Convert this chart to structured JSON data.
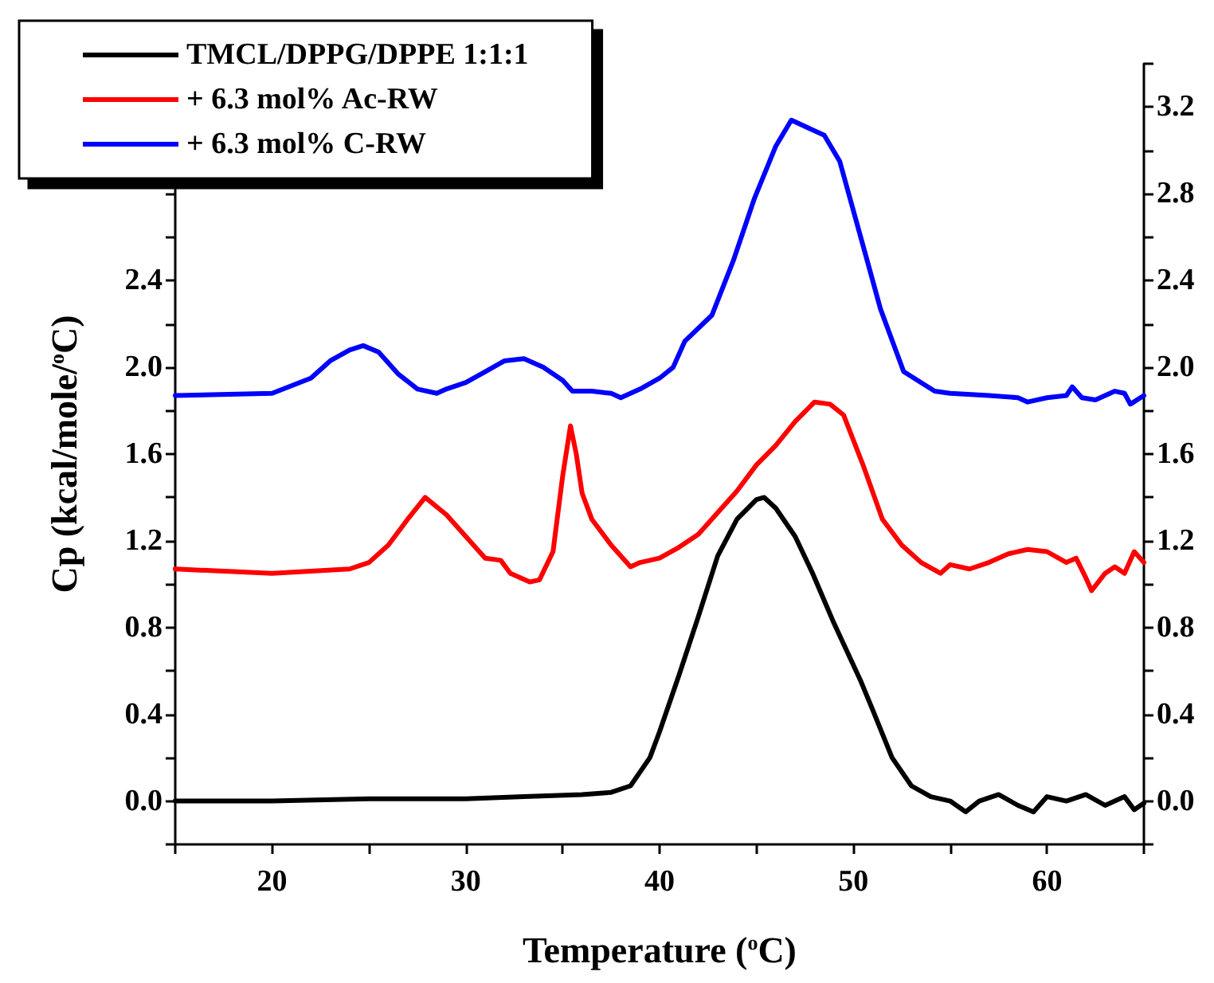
{
  "chart_data": {
    "type": "line",
    "xlabel": "Temperature ($^{o}$C)",
    "ylabel": "Cp (kcal/mole/$^{o}$C)",
    "xlim": [
      15,
      65
    ],
    "xticks": [
      {
        "value": 15,
        "label": null
      },
      20,
      {
        "value": 25,
        "label": null
      },
      30,
      {
        "value": 35,
        "label": null
      },
      40,
      {
        "value": 45,
        "label": null
      },
      50,
      {
        "value": 55,
        "label": null
      },
      60,
      {
        "value": 65,
        "label": null
      }
    ],
    "ylim": [
      -0.2,
      3.4
    ],
    "yticks": [
      {
        "value": -0.2,
        "label": null
      },
      {
        "value": 0,
        "label": "0.0"
      },
      {
        "value": 0.2,
        "label": null
      },
      0.4,
      {
        "value": 0.6,
        "label": null
      },
      0.8,
      {
        "value": 1.0,
        "label": null
      },
      1.2,
      {
        "value": 1.4,
        "label": null
      },
      1.6,
      {
        "value": 1.8,
        "label": null
      },
      {
        "value": 2.0,
        "label": "2.0"
      },
      {
        "value": 2.2,
        "label": null
      },
      2.4,
      {
        "value": 2.6,
        "label": null
      },
      {
        "value": 2.8,
        "label": null
      },
      {
        "value": 3.0,
        "label": null
      },
      {
        "value": 3.2,
        "label": null
      },
      {
        "value": 3.4,
        "label": null
      }
    ],
    "y2lim": [
      -0.2,
      3.4
    ],
    "y2ticks": [
      {
        "value": -0.2,
        "label": null
      },
      {
        "value": 0,
        "label": "0.0"
      },
      {
        "value": 0.2,
        "label": null
      },
      0.4,
      {
        "value": 0.6,
        "label": null
      },
      0.8,
      {
        "value": 1.0,
        "label": null
      },
      1.2,
      {
        "value": 1.4,
        "label": null
      },
      1.6,
      {
        "value": 1.8,
        "label": null
      },
      {
        "value": 2.0,
        "label": "2.0"
      },
      {
        "value": 2.2,
        "label": null
      },
      2.4,
      {
        "value": 2.6,
        "label": null
      },
      2.8,
      {
        "value": 3.0,
        "label": null
      },
      3.2,
      {
        "value": 3.4,
        "label": null
      }
    ],
    "grid": false,
    "legend": "top left",
    "marker": "none",
    "line_style": "solid",
    "series": [
      {
        "name": "TMCL/DPPG/DPPE 1:1:1",
        "color": "#000000",
        "x": [
          15,
          20,
          25,
          30,
          33,
          36,
          37.5,
          38.5,
          39.5,
          40,
          41,
          42,
          43,
          44,
          45,
          45.4,
          46,
          47,
          47.9,
          49,
          50.4,
          51,
          52,
          53,
          54,
          55,
          55.8,
          56.5,
          57.5,
          58.5,
          59.3,
          60,
          61,
          62,
          63,
          64,
          64.5,
          65
        ],
        "values": [
          0,
          0,
          0.01,
          0.01,
          0.02,
          0.03,
          0.04,
          0.07,
          0.2,
          0.32,
          0.58,
          0.85,
          1.13,
          1.3,
          1.39,
          1.4,
          1.35,
          1.22,
          1.05,
          0.82,
          0.55,
          0.42,
          0.2,
          0.07,
          0.02,
          0,
          -0.05,
          0,
          0.03,
          -0.02,
          -0.05,
          0.02,
          0,
          0.03,
          -0.02,
          0.02,
          -0.04,
          -0.01
        ]
      },
      {
        "name": "+ 6.3 mol% Ac-RW",
        "color": "#ff0000",
        "x": [
          15,
          20,
          24,
          25,
          26,
          27,
          27.9,
          29,
          30,
          31,
          31.8,
          32.3,
          33.3,
          33.8,
          34.5,
          35,
          35.4,
          35.7,
          36,
          36.5,
          37.5,
          38.5,
          39,
          40,
          41,
          42,
          43,
          44,
          45,
          46,
          47,
          48,
          48.8,
          49.5,
          50.5,
          51.5,
          52.5,
          53.5,
          54.5,
          55,
          56,
          57,
          58,
          59,
          60,
          61,
          61.5,
          62,
          62.3,
          63,
          63.5,
          64,
          64.5,
          65
        ],
        "values": [
          1.07,
          1.05,
          1.07,
          1.1,
          1.18,
          1.3,
          1.4,
          1.32,
          1.22,
          1.12,
          1.11,
          1.05,
          1.01,
          1.02,
          1.15,
          1.5,
          1.73,
          1.6,
          1.42,
          1.3,
          1.18,
          1.08,
          1.1,
          1.12,
          1.17,
          1.23,
          1.33,
          1.43,
          1.55,
          1.64,
          1.75,
          1.84,
          1.83,
          1.78,
          1.55,
          1.3,
          1.18,
          1.1,
          1.05,
          1.09,
          1.07,
          1.1,
          1.14,
          1.16,
          1.15,
          1.1,
          1.12,
          1.03,
          0.97,
          1.05,
          1.08,
          1.05,
          1.15,
          1.1
        ]
      },
      {
        "name": "+ 6.3 mol% C-RW",
        "color": "#0000ff",
        "x": [
          15,
          20,
          22,
          23,
          24,
          24.7,
          25.5,
          26.5,
          27.5,
          28.5,
          29,
          30,
          31,
          32,
          33,
          34,
          35,
          35.5,
          36.5,
          37.5,
          38,
          39,
          40,
          40.7,
          41.3,
          42.7,
          43.8,
          44.9,
          46,
          46.8,
          48.5,
          49.3,
          50.6,
          51.4,
          52.6,
          54.2,
          55,
          57,
          58.5,
          59,
          60,
          61,
          61.3,
          61.8,
          62.5,
          63.5,
          64,
          64.3,
          65
        ],
        "values": [
          1.87,
          1.88,
          1.95,
          2.03,
          2.08,
          2.1,
          2.07,
          1.97,
          1.9,
          1.88,
          1.9,
          1.93,
          1.98,
          2.03,
          2.04,
          2.0,
          1.94,
          1.89,
          1.89,
          1.88,
          1.86,
          1.9,
          1.95,
          2.0,
          2.12,
          2.24,
          2.49,
          2.78,
          3.02,
          3.14,
          3.07,
          2.95,
          2.53,
          2.27,
          1.98,
          1.89,
          1.88,
          1.87,
          1.86,
          1.84,
          1.86,
          1.87,
          1.91,
          1.86,
          1.85,
          1.89,
          1.88,
          1.83,
          1.87
        ]
      }
    ]
  }
}
